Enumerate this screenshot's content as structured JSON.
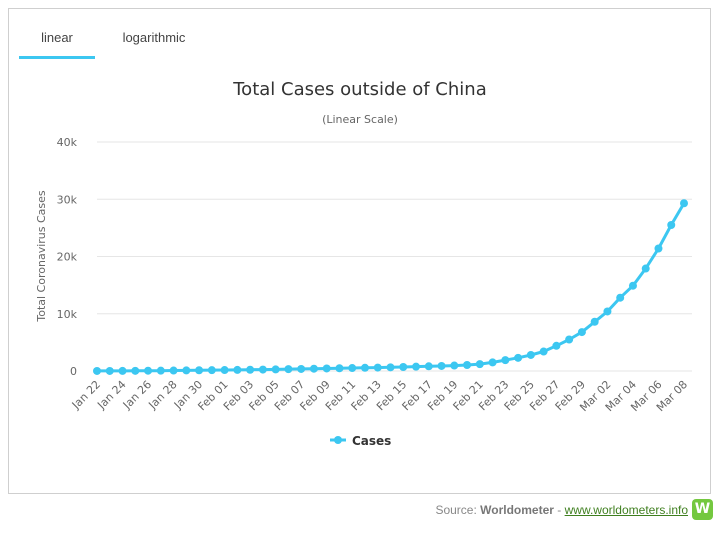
{
  "tabs": [
    {
      "label": "linear",
      "active": true
    },
    {
      "label": "logarithmic",
      "active": false
    }
  ],
  "source": {
    "prefix": "Source:",
    "name": "Worldometer",
    "separator": "-",
    "link_text": "www.worldometers.info",
    "logo_letter": "W"
  },
  "chart_data": {
    "type": "line",
    "title": "Total Cases outside of China",
    "subtitle": "(Linear Scale)",
    "ylabel": "Total Coronavirus Cases",
    "xlabel": "",
    "ylim": [
      0,
      40000
    ],
    "yticks": [
      0,
      10000,
      20000,
      30000,
      40000
    ],
    "ytick_labels": [
      "0",
      "10k",
      "20k",
      "30k",
      "40k"
    ],
    "grid": true,
    "legend_position": "bottom-center",
    "x": [
      "Jan 22",
      "Jan 23",
      "Jan 24",
      "Jan 25",
      "Jan 26",
      "Jan 27",
      "Jan 28",
      "Jan 29",
      "Jan 30",
      "Jan 31",
      "Feb 01",
      "Feb 02",
      "Feb 03",
      "Feb 04",
      "Feb 05",
      "Feb 06",
      "Feb 07",
      "Feb 08",
      "Feb 09",
      "Feb 10",
      "Feb 11",
      "Feb 12",
      "Feb 13",
      "Feb 14",
      "Feb 15",
      "Feb 16",
      "Feb 17",
      "Feb 18",
      "Feb 19",
      "Feb 20",
      "Feb 21",
      "Feb 22",
      "Feb 23",
      "Feb 24",
      "Feb 25",
      "Feb 26",
      "Feb 27",
      "Feb 28",
      "Feb 29",
      "Mar 01",
      "Mar 02",
      "Mar 03",
      "Mar 04",
      "Mar 05",
      "Mar 06",
      "Mar 07",
      "Mar 08"
    ],
    "x_tick_labels": [
      "Jan 22",
      "Jan 24",
      "Jan 26",
      "Jan 28",
      "Jan 30",
      "Feb 01",
      "Feb 03",
      "Feb 05",
      "Feb 07",
      "Feb 09",
      "Feb 11",
      "Feb 13",
      "Feb 15",
      "Feb 17",
      "Feb 19",
      "Feb 21",
      "Feb 23",
      "Feb 25",
      "Feb 27",
      "Feb 29",
      "Mar 02",
      "Mar 04",
      "Mar 06",
      "Mar 08"
    ],
    "series": [
      {
        "name": "Cases",
        "color": "#3cc7f1",
        "values": [
          10,
          10,
          15,
          30,
          50,
          60,
          80,
          100,
          130,
          150,
          170,
          190,
          220,
          250,
          280,
          330,
          360,
          400,
          440,
          480,
          520,
          560,
          600,
          640,
          700,
          760,
          820,
          880,
          950,
          1050,
          1200,
          1500,
          1900,
          2300,
          2800,
          3400,
          4400,
          5500,
          6800,
          8600,
          10400,
          12800,
          14900,
          17900,
          21400,
          25500,
          29300
        ]
      }
    ]
  }
}
